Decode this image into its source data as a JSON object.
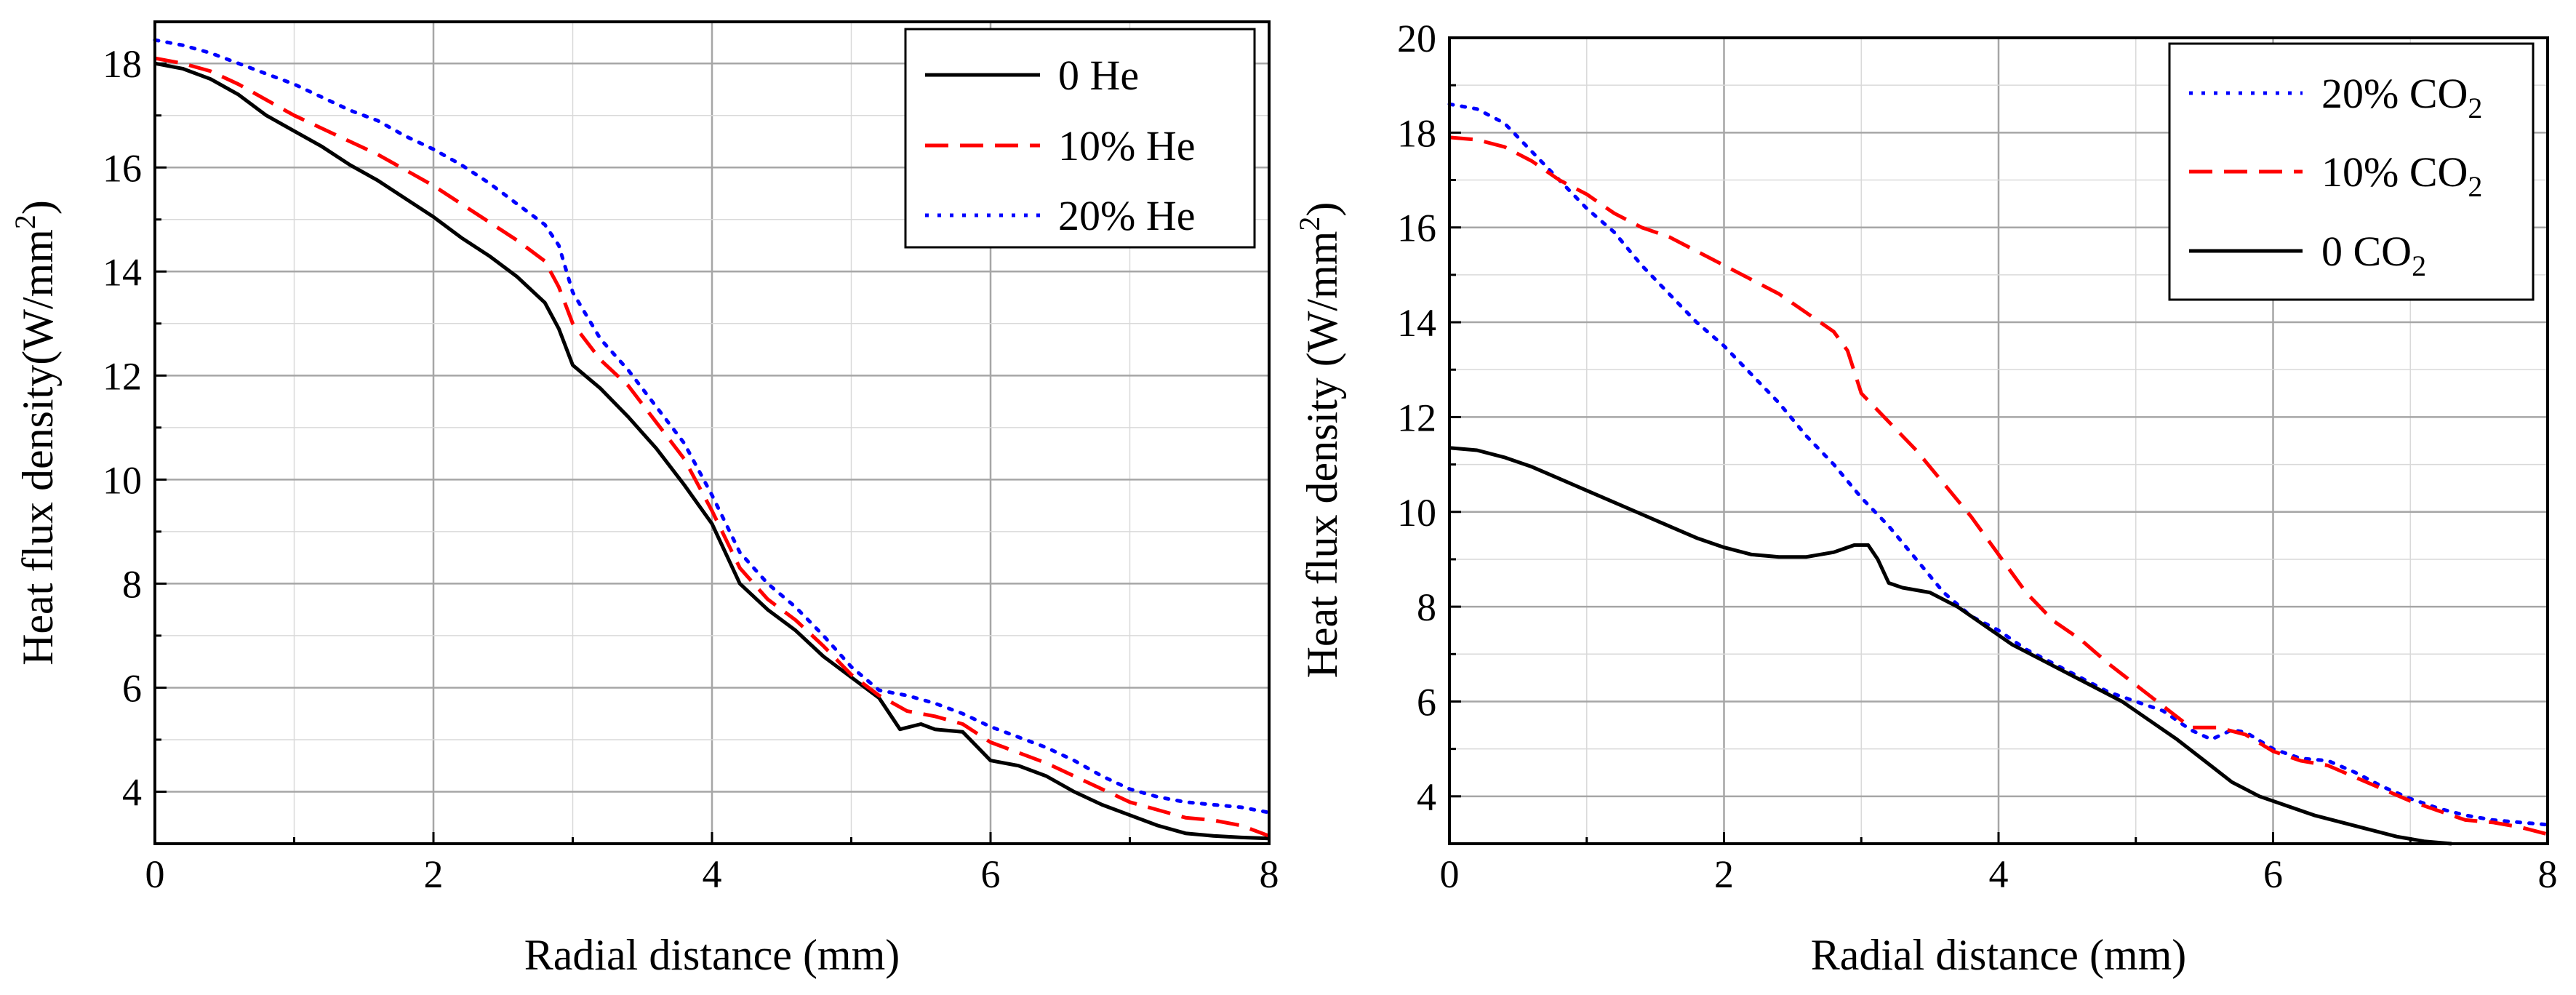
{
  "chart_data": [
    {
      "type": "line",
      "xlabel": "Radial distance (mm)",
      "ylabel": "Heat flux density(W/mm",
      "ylabel_sup": "2",
      "ylabel_end": ")",
      "xlim": [
        0,
        8
      ],
      "ylim": [
        3,
        18.8
      ],
      "xticks": [
        0,
        2,
        4,
        6,
        8
      ],
      "yticks": [
        4,
        6,
        8,
        10,
        12,
        14,
        16,
        18
      ],
      "grid": true,
      "legend_position": "top-right",
      "series": [
        {
          "name": "0 He",
          "label": "0 He",
          "color": "#000000",
          "dash": "solid",
          "x": [
            0,
            0.2,
            0.4,
            0.6,
            0.8,
            1.0,
            1.2,
            1.4,
            1.6,
            1.8,
            2.0,
            2.2,
            2.4,
            2.6,
            2.8,
            2.9,
            3.0,
            3.2,
            3.4,
            3.6,
            3.8,
            4.0,
            4.2,
            4.4,
            4.6,
            4.8,
            5.0,
            5.2,
            5.35,
            5.5,
            5.6,
            5.8,
            6.0,
            6.2,
            6.4,
            6.6,
            6.8,
            7.0,
            7.2,
            7.4,
            7.6,
            7.8,
            8.0
          ],
          "y": [
            18.0,
            17.9,
            17.7,
            17.4,
            17.0,
            16.7,
            16.4,
            16.05,
            15.75,
            15.4,
            15.05,
            14.65,
            14.3,
            13.9,
            13.4,
            12.9,
            12.2,
            11.75,
            11.2,
            10.6,
            9.9,
            9.15,
            8.0,
            7.5,
            7.1,
            6.6,
            6.2,
            5.8,
            5.2,
            5.3,
            5.2,
            5.15,
            4.6,
            4.5,
            4.3,
            4.0,
            3.75,
            3.55,
            3.35,
            3.2,
            3.15,
            3.12,
            3.1
          ]
        },
        {
          "name": "10% He",
          "label": "10% He",
          "color": "#ff0000",
          "dash": "long",
          "x": [
            0,
            0.2,
            0.4,
            0.6,
            0.8,
            1.0,
            1.2,
            1.4,
            1.6,
            1.8,
            2.0,
            2.2,
            2.4,
            2.6,
            2.8,
            2.9,
            3.0,
            3.2,
            3.4,
            3.6,
            3.8,
            4.0,
            4.2,
            4.4,
            4.6,
            4.8,
            5.0,
            5.2,
            5.4,
            5.6,
            5.8,
            6.0,
            6.2,
            6.4,
            6.6,
            6.8,
            7.0,
            7.2,
            7.4,
            7.6,
            7.8,
            8.0
          ],
          "y": [
            18.1,
            18.0,
            17.85,
            17.6,
            17.3,
            17.0,
            16.75,
            16.5,
            16.25,
            15.95,
            15.65,
            15.3,
            14.95,
            14.6,
            14.2,
            13.7,
            13.0,
            12.3,
            11.8,
            11.1,
            10.4,
            9.4,
            8.3,
            7.7,
            7.3,
            6.8,
            6.25,
            5.85,
            5.55,
            5.45,
            5.3,
            4.95,
            4.75,
            4.55,
            4.3,
            4.05,
            3.8,
            3.65,
            3.5,
            3.45,
            3.35,
            3.15
          ]
        },
        {
          "name": "20% He",
          "label": "20% He",
          "color": "#0000ff",
          "dash": "dot",
          "x": [
            0,
            0.2,
            0.4,
            0.6,
            0.8,
            1.0,
            1.2,
            1.4,
            1.6,
            1.8,
            2.0,
            2.2,
            2.4,
            2.6,
            2.8,
            2.9,
            3.0,
            3.2,
            3.4,
            3.6,
            3.8,
            4.0,
            4.2,
            4.4,
            4.6,
            4.8,
            5.0,
            5.2,
            5.4,
            5.6,
            5.8,
            6.0,
            6.2,
            6.4,
            6.6,
            6.8,
            7.0,
            7.2,
            7.4,
            7.6,
            7.8,
            8.0
          ],
          "y": [
            18.45,
            18.35,
            18.2,
            18.0,
            17.8,
            17.6,
            17.35,
            17.1,
            16.9,
            16.6,
            16.35,
            16.05,
            15.7,
            15.3,
            14.9,
            14.5,
            13.6,
            12.7,
            12.1,
            11.4,
            10.7,
            9.7,
            8.6,
            8.0,
            7.55,
            7.0,
            6.4,
            5.95,
            5.85,
            5.7,
            5.5,
            5.25,
            5.05,
            4.85,
            4.6,
            4.3,
            4.05,
            3.9,
            3.8,
            3.75,
            3.7,
            3.6
          ]
        }
      ]
    },
    {
      "type": "line",
      "xlabel": "Radial distance (mm)",
      "ylabel": "Heat flux density (W/mm",
      "ylabel_sup": "2",
      "ylabel_end": ")",
      "xlim": [
        0,
        8
      ],
      "ylim": [
        3,
        20
      ],
      "xticks": [
        0,
        2,
        4,
        6,
        8
      ],
      "yticks": [
        4,
        6,
        8,
        10,
        12,
        14,
        16,
        18,
        20
      ],
      "grid": true,
      "legend_position": "top-right",
      "series": [
        {
          "name": "20% CO2",
          "label": "20% CO",
          "label_sub": "2",
          "color": "#0000ff",
          "dash": "dot",
          "x": [
            0,
            0.2,
            0.4,
            0.6,
            0.8,
            1.0,
            1.2,
            1.4,
            1.6,
            1.8,
            2.0,
            2.2,
            2.4,
            2.6,
            2.8,
            3.0,
            3.2,
            3.4,
            3.6,
            3.8,
            4.0,
            4.2,
            4.4,
            4.6,
            4.8,
            5.0,
            5.2,
            5.4,
            5.55,
            5.7,
            5.8,
            6.0,
            6.2,
            6.4,
            6.6,
            6.8,
            7.0,
            7.2,
            7.4,
            7.6,
            7.8,
            8.0
          ],
          "y": [
            18.6,
            18.5,
            18.2,
            17.6,
            17.0,
            16.4,
            15.9,
            15.2,
            14.6,
            14.0,
            13.5,
            12.9,
            12.3,
            11.6,
            11.0,
            10.3,
            9.7,
            9.0,
            8.3,
            7.8,
            7.5,
            7.1,
            6.8,
            6.5,
            6.2,
            6.0,
            5.8,
            5.4,
            5.2,
            5.4,
            5.35,
            5.0,
            4.8,
            4.75,
            4.5,
            4.2,
            3.95,
            3.75,
            3.6,
            3.5,
            3.45,
            3.4
          ]
        },
        {
          "name": "10% CO2",
          "label": "10% CO",
          "label_sub": "2",
          "color": "#ff0000",
          "dash": "long",
          "x": [
            0,
            0.2,
            0.4,
            0.6,
            0.8,
            1.0,
            1.2,
            1.4,
            1.6,
            1.8,
            2.0,
            2.2,
            2.4,
            2.6,
            2.8,
            2.9,
            3.0,
            3.2,
            3.4,
            3.6,
            3.8,
            4.0,
            4.2,
            4.4,
            4.6,
            4.8,
            5.0,
            5.2,
            5.4,
            5.6,
            5.8,
            6.0,
            6.2,
            6.4,
            6.6,
            6.8,
            7.0,
            7.2,
            7.4,
            7.6,
            7.8,
            8.0
          ],
          "y": [
            17.9,
            17.85,
            17.7,
            17.4,
            17.0,
            16.7,
            16.3,
            16.0,
            15.8,
            15.5,
            15.2,
            14.9,
            14.6,
            14.2,
            13.8,
            13.4,
            12.5,
            11.9,
            11.3,
            10.6,
            9.9,
            9.1,
            8.3,
            7.7,
            7.3,
            6.8,
            6.35,
            5.9,
            5.45,
            5.45,
            5.3,
            4.95,
            4.75,
            4.65,
            4.4,
            4.15,
            3.9,
            3.7,
            3.5,
            3.45,
            3.35,
            3.2
          ]
        },
        {
          "name": "0 CO2",
          "label": "0 CO",
          "label_sub": "2",
          "color": "#000000",
          "dash": "solid",
          "x": [
            0,
            0.2,
            0.4,
            0.6,
            0.8,
            1.0,
            1.2,
            1.4,
            1.6,
            1.8,
            2.0,
            2.2,
            2.4,
            2.6,
            2.8,
            2.95,
            3.05,
            3.12,
            3.2,
            3.3,
            3.5,
            3.7,
            3.9,
            4.1,
            4.3,
            4.5,
            4.7,
            4.9,
            5.1,
            5.3,
            5.5,
            5.7,
            5.9,
            6.1,
            6.3,
            6.5,
            6.7,
            6.9,
            7.1,
            7.3
          ],
          "y": [
            11.35,
            11.3,
            11.15,
            10.95,
            10.7,
            10.45,
            10.2,
            9.95,
            9.7,
            9.45,
            9.25,
            9.1,
            9.05,
            9.05,
            9.15,
            9.3,
            9.3,
            9.0,
            8.5,
            8.4,
            8.3,
            8.0,
            7.6,
            7.2,
            6.9,
            6.6,
            6.3,
            6.0,
            5.6,
            5.2,
            4.75,
            4.3,
            4.0,
            3.8,
            3.6,
            3.45,
            3.3,
            3.15,
            3.05,
            3.0
          ]
        }
      ]
    }
  ]
}
